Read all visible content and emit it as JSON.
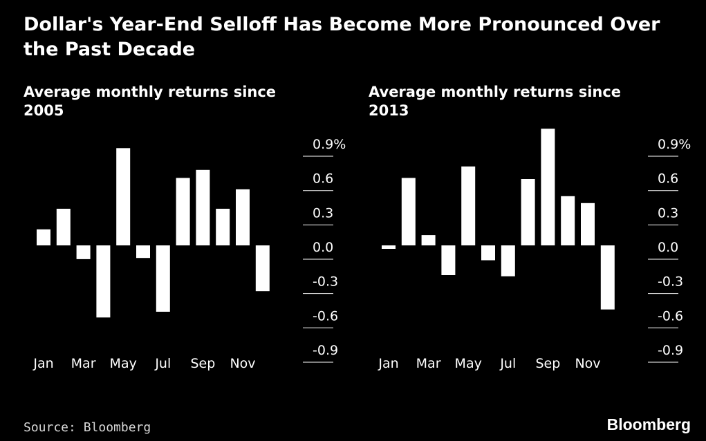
{
  "title": "Dollar's Year-End Selloff Has Become More Pronounced Over the Past Decade",
  "source": "Source: Bloomberg",
  "brand": "Bloomberg",
  "colors": {
    "background": "#000000",
    "bars": "#ffffff",
    "text": "#ffffff",
    "gridlines": "#ffffff"
  },
  "chart_data": [
    {
      "type": "bar",
      "title": "Average monthly returns since 2005",
      "categories": [
        "Jan",
        "Feb",
        "Mar",
        "Apr",
        "May",
        "Jun",
        "Jul",
        "Aug",
        "Sep",
        "Oct",
        "Nov",
        "Dec"
      ],
      "x_tick_labels": [
        "Jan",
        "Mar",
        "May",
        "Jul",
        "Sep",
        "Nov"
      ],
      "values": [
        0.14,
        0.32,
        -0.12,
        -0.63,
        0.85,
        -0.11,
        -0.58,
        0.59,
        0.66,
        0.32,
        0.49,
        -0.4
      ],
      "ylim": [
        -0.9,
        1.0
      ],
      "y_ticks": [
        0.9,
        0.6,
        0.3,
        0.0,
        -0.3,
        -0.6,
        -0.9
      ],
      "y_tick_labels": [
        "0.9%",
        "0.6",
        "0.3",
        "0.0",
        "-0.3",
        "-0.6",
        "-0.9"
      ],
      "xlabel": "",
      "ylabel": "",
      "grid": false,
      "y_axis_side": "right"
    },
    {
      "type": "bar",
      "title": "Average monthly returns since 2013",
      "categories": [
        "Jan",
        "Feb",
        "Mar",
        "Apr",
        "May",
        "Jun",
        "Jul",
        "Aug",
        "Sep",
        "Oct",
        "Nov",
        "Dec"
      ],
      "x_tick_labels": [
        "Jan",
        "Mar",
        "May",
        "Jul",
        "Sep",
        "Nov"
      ],
      "values": [
        -0.03,
        0.59,
        0.09,
        -0.26,
        0.69,
        -0.13,
        -0.27,
        0.58,
        1.02,
        0.43,
        0.37,
        -0.56
      ],
      "ylim": [
        -0.9,
        1.0
      ],
      "y_ticks": [
        0.9,
        0.6,
        0.3,
        0.0,
        -0.3,
        -0.6,
        -0.9
      ],
      "y_tick_labels": [
        "0.9%",
        "0.6",
        "0.3",
        "0.0",
        "-0.3",
        "-0.6",
        "-0.9"
      ],
      "xlabel": "",
      "ylabel": "",
      "grid": false,
      "y_axis_side": "right"
    }
  ]
}
